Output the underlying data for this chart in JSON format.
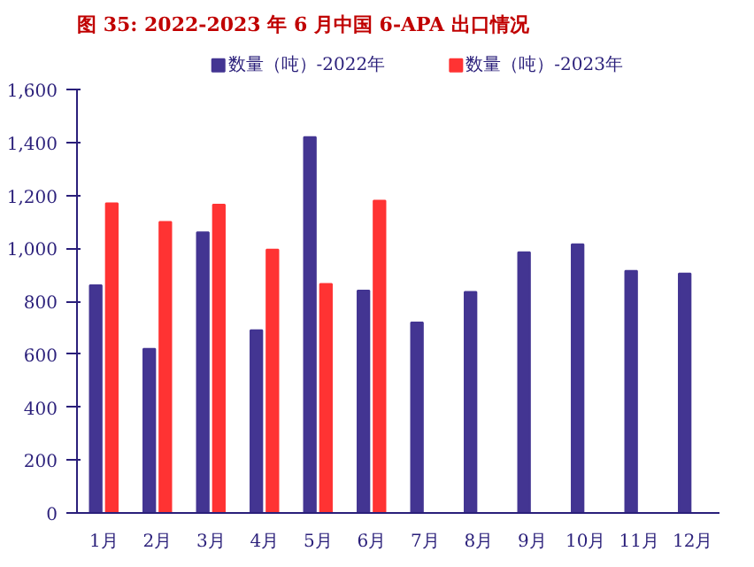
{
  "chart_data": {
    "type": "bar",
    "title": "图 35:  2022-2023 年 6 月中国 6-APA 出口情况",
    "categories": [
      "1月",
      "2月",
      "3月",
      "4月",
      "5月",
      "6月",
      "7月",
      "8月",
      "9月",
      "10月",
      "11月",
      "12月"
    ],
    "series": [
      {
        "name": "数量（吨）-2022年",
        "color": "#433592",
        "values": [
          860,
          620,
          1060,
          690,
          1420,
          840,
          720,
          835,
          985,
          1015,
          915,
          905
        ]
      },
      {
        "name": "数量（吨）-2023年",
        "color": "#ff3333",
        "values": [
          1170,
          1100,
          1165,
          995,
          865,
          1180,
          null,
          null,
          null,
          null,
          null,
          null
        ]
      }
    ],
    "ylim": [
      0,
      1600
    ],
    "yticks": [
      0,
      200,
      400,
      600,
      800,
      {
        "value": 1000,
        "label": "1,000"
      },
      {
        "value": 1200,
        "label": "1,200"
      },
      {
        "value": 1400,
        "label": "1,400"
      },
      {
        "value": 1600,
        "label": "1,600"
      }
    ],
    "grid": false,
    "legend": "top"
  }
}
